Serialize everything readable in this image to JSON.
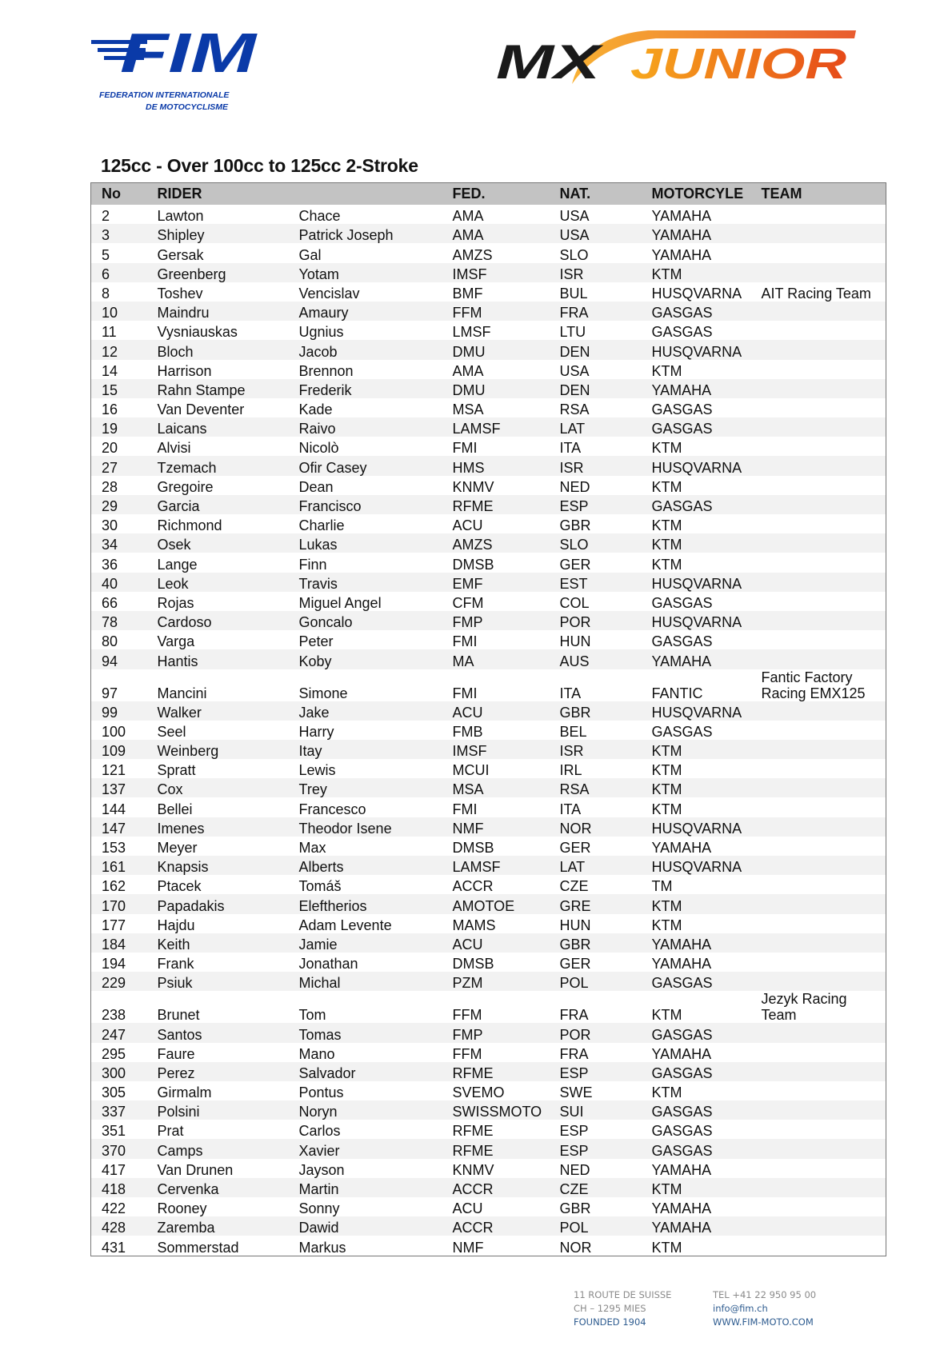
{
  "logos": {
    "fim": "FIM",
    "fim_sub1": "FEDERATION INTERNATIONALE",
    "fim_sub2": "DE MOTOCYCLISME",
    "mx_left": "MX",
    "mx_right": "JUNIOR"
  },
  "colors": {
    "fim_blue": "#0a3aa8",
    "mx_orange": "#e8541a",
    "header_gray": "#c3c3c3",
    "row_shade": "#f2f2f2"
  },
  "title": "125cc - Over 100cc to 125cc 2-Stroke",
  "table": {
    "headers": [
      "No",
      "RIDER",
      "",
      "FED.",
      "NAT.",
      "MOTORCYLE",
      "TEAM"
    ],
    "rows": [
      [
        "2",
        "Lawton",
        "Chace",
        "AMA",
        "USA",
        "YAMAHA",
        ""
      ],
      [
        "3",
        "Shipley",
        "Patrick Joseph",
        "AMA",
        "USA",
        "YAMAHA",
        ""
      ],
      [
        "5",
        "Gersak",
        "Gal",
        "AMZS",
        "SLO",
        "YAMAHA",
        ""
      ],
      [
        "6",
        "Greenberg",
        "Yotam",
        "IMSF",
        "ISR",
        "KTM",
        ""
      ],
      [
        "8",
        "Toshev",
        "Vencislav",
        "BMF",
        "BUL",
        "HUSQVARNA",
        "AIT Racing Team"
      ],
      [
        "10",
        "Maindru",
        "Amaury",
        "FFM",
        "FRA",
        "GASGAS",
        ""
      ],
      [
        "11",
        "Vysniauskas",
        "Ugnius",
        "LMSF",
        "LTU",
        "GASGAS",
        ""
      ],
      [
        "12",
        "Bloch",
        "Jacob",
        "DMU",
        "DEN",
        "HUSQVARNA",
        ""
      ],
      [
        "14",
        "Harrison",
        "Brennon",
        "AMA",
        "USA",
        "KTM",
        ""
      ],
      [
        "15",
        "Rahn Stampe",
        "Frederik",
        "DMU",
        "DEN",
        "YAMAHA",
        ""
      ],
      [
        "16",
        "Van Deventer",
        "Kade",
        "MSA",
        "RSA",
        "GASGAS",
        ""
      ],
      [
        "19",
        "Laicans",
        "Raivo",
        "LAMSF",
        "LAT",
        "GASGAS",
        ""
      ],
      [
        "20",
        "Alvisi",
        "Nicolò",
        "FMI",
        "ITA",
        "KTM",
        ""
      ],
      [
        "27",
        "Tzemach",
        "Ofir Casey",
        "HMS",
        "ISR",
        "HUSQVARNA",
        ""
      ],
      [
        "28",
        "Gregoire",
        "Dean",
        "KNMV",
        "NED",
        "KTM",
        ""
      ],
      [
        "29",
        "Garcia",
        "Francisco",
        "RFME",
        "ESP",
        "GASGAS",
        ""
      ],
      [
        "30",
        "Richmond",
        "Charlie",
        "ACU",
        "GBR",
        "KTM",
        ""
      ],
      [
        "34",
        "Osek",
        "Lukas",
        "AMZS",
        "SLO",
        "KTM",
        ""
      ],
      [
        "36",
        "Lange",
        "Finn",
        "DMSB",
        "GER",
        "KTM",
        ""
      ],
      [
        "40",
        "Leok",
        "Travis",
        "EMF",
        "EST",
        "HUSQVARNA",
        ""
      ],
      [
        "66",
        "Rojas",
        "Miguel Angel",
        "CFM",
        "COL",
        "GASGAS",
        ""
      ],
      [
        "78",
        "Cardoso",
        "Goncalo",
        "FMP",
        "POR",
        "HUSQVARNA",
        ""
      ],
      [
        "80",
        "Varga",
        "Peter",
        "FMI",
        "HUN",
        "GASGAS",
        ""
      ],
      [
        "94",
        "Hantis",
        "Koby",
        "MA",
        "AUS",
        "YAMAHA",
        ""
      ],
      [
        "97",
        "Mancini",
        "Simone",
        "FMI",
        "ITA",
        "FANTIC",
        "Fantic Factory Racing EMX125"
      ],
      [
        "99",
        "Walker",
        "Jake",
        "ACU",
        "GBR",
        "HUSQVARNA",
        ""
      ],
      [
        "100",
        "Seel",
        "Harry",
        "FMB",
        "BEL",
        "GASGAS",
        ""
      ],
      [
        "109",
        "Weinberg",
        "Itay",
        "IMSF",
        "ISR",
        "KTM",
        ""
      ],
      [
        "121",
        "Spratt",
        "Lewis",
        "MCUI",
        "IRL",
        "KTM",
        ""
      ],
      [
        "137",
        "Cox",
        "Trey",
        "MSA",
        "RSA",
        "KTM",
        ""
      ],
      [
        "144",
        "Bellei",
        "Francesco",
        "FMI",
        "ITA",
        "KTM",
        ""
      ],
      [
        "147",
        "Imenes",
        "Theodor Isene",
        "NMF",
        "NOR",
        "HUSQVARNA",
        ""
      ],
      [
        "153",
        "Meyer",
        "Max",
        "DMSB",
        "GER",
        "YAMAHA",
        ""
      ],
      [
        "161",
        "Knapsis",
        "Alberts",
        "LAMSF",
        "LAT",
        "HUSQVARNA",
        ""
      ],
      [
        "162",
        "Ptacek",
        "Tomáš",
        "ACCR",
        "CZE",
        "TM",
        ""
      ],
      [
        "170",
        "Papadakis",
        "Eleftherios",
        "AMOTOE",
        "GRE",
        "KTM",
        ""
      ],
      [
        "177",
        "Hajdu",
        "Adam Levente",
        "MAMS",
        "HUN",
        "KTM",
        ""
      ],
      [
        "184",
        "Keith",
        "Jamie",
        "ACU",
        "GBR",
        "YAMAHA",
        ""
      ],
      [
        "194",
        "Frank",
        "Jonathan",
        "DMSB",
        "GER",
        "YAMAHA",
        ""
      ],
      [
        "229",
        "Psiuk",
        "Michal",
        "PZM",
        "POL",
        "GASGAS",
        ""
      ],
      [
        "238",
        "Brunet",
        "Tom",
        "FFM",
        "FRA",
        "KTM",
        "Jezyk Racing Team"
      ],
      [
        "247",
        "Santos",
        "Tomas",
        "FMP",
        "POR",
        "GASGAS",
        ""
      ],
      [
        "295",
        "Faure",
        "Mano",
        "FFM",
        "FRA",
        "YAMAHA",
        ""
      ],
      [
        "300",
        "Perez",
        "Salvador",
        "RFME",
        "ESP",
        "GASGAS",
        ""
      ],
      [
        "305",
        "Girmalm",
        "Pontus",
        "SVEMO",
        "SWE",
        "KTM",
        ""
      ],
      [
        "337",
        "Polsini",
        "Noryn",
        "SWISSMOTO",
        "SUI",
        "GASGAS",
        ""
      ],
      [
        "351",
        "Prat",
        "Carlos",
        "RFME",
        "ESP",
        "GASGAS",
        ""
      ],
      [
        "370",
        "Camps",
        "Xavier",
        "RFME",
        "ESP",
        "GASGAS",
        ""
      ],
      [
        "417",
        "Van Drunen",
        "Jayson",
        "KNMV",
        "NED",
        "YAMAHA",
        ""
      ],
      [
        "418",
        "Cervenka",
        "Martin",
        "ACCR",
        "CZE",
        "KTM",
        ""
      ],
      [
        "422",
        "Rooney",
        "Sonny",
        "ACU",
        "GBR",
        "YAMAHA",
        ""
      ],
      [
        "428",
        "Zaremba",
        "Dawid",
        "ACCR",
        "POL",
        "YAMAHA",
        ""
      ],
      [
        "431",
        "Sommerstad",
        "Markus",
        "NMF",
        "NOR",
        "KTM",
        ""
      ]
    ]
  },
  "footer": {
    "address1": "11 ROUTE DE SUISSE",
    "address2": "CH – 1295 MIES",
    "founded": "FOUNDED 1904",
    "tel": "TEL +41 22 950 95 00",
    "email": "info@fim.ch",
    "web": "WWW.FIM-MOTO.COM"
  }
}
